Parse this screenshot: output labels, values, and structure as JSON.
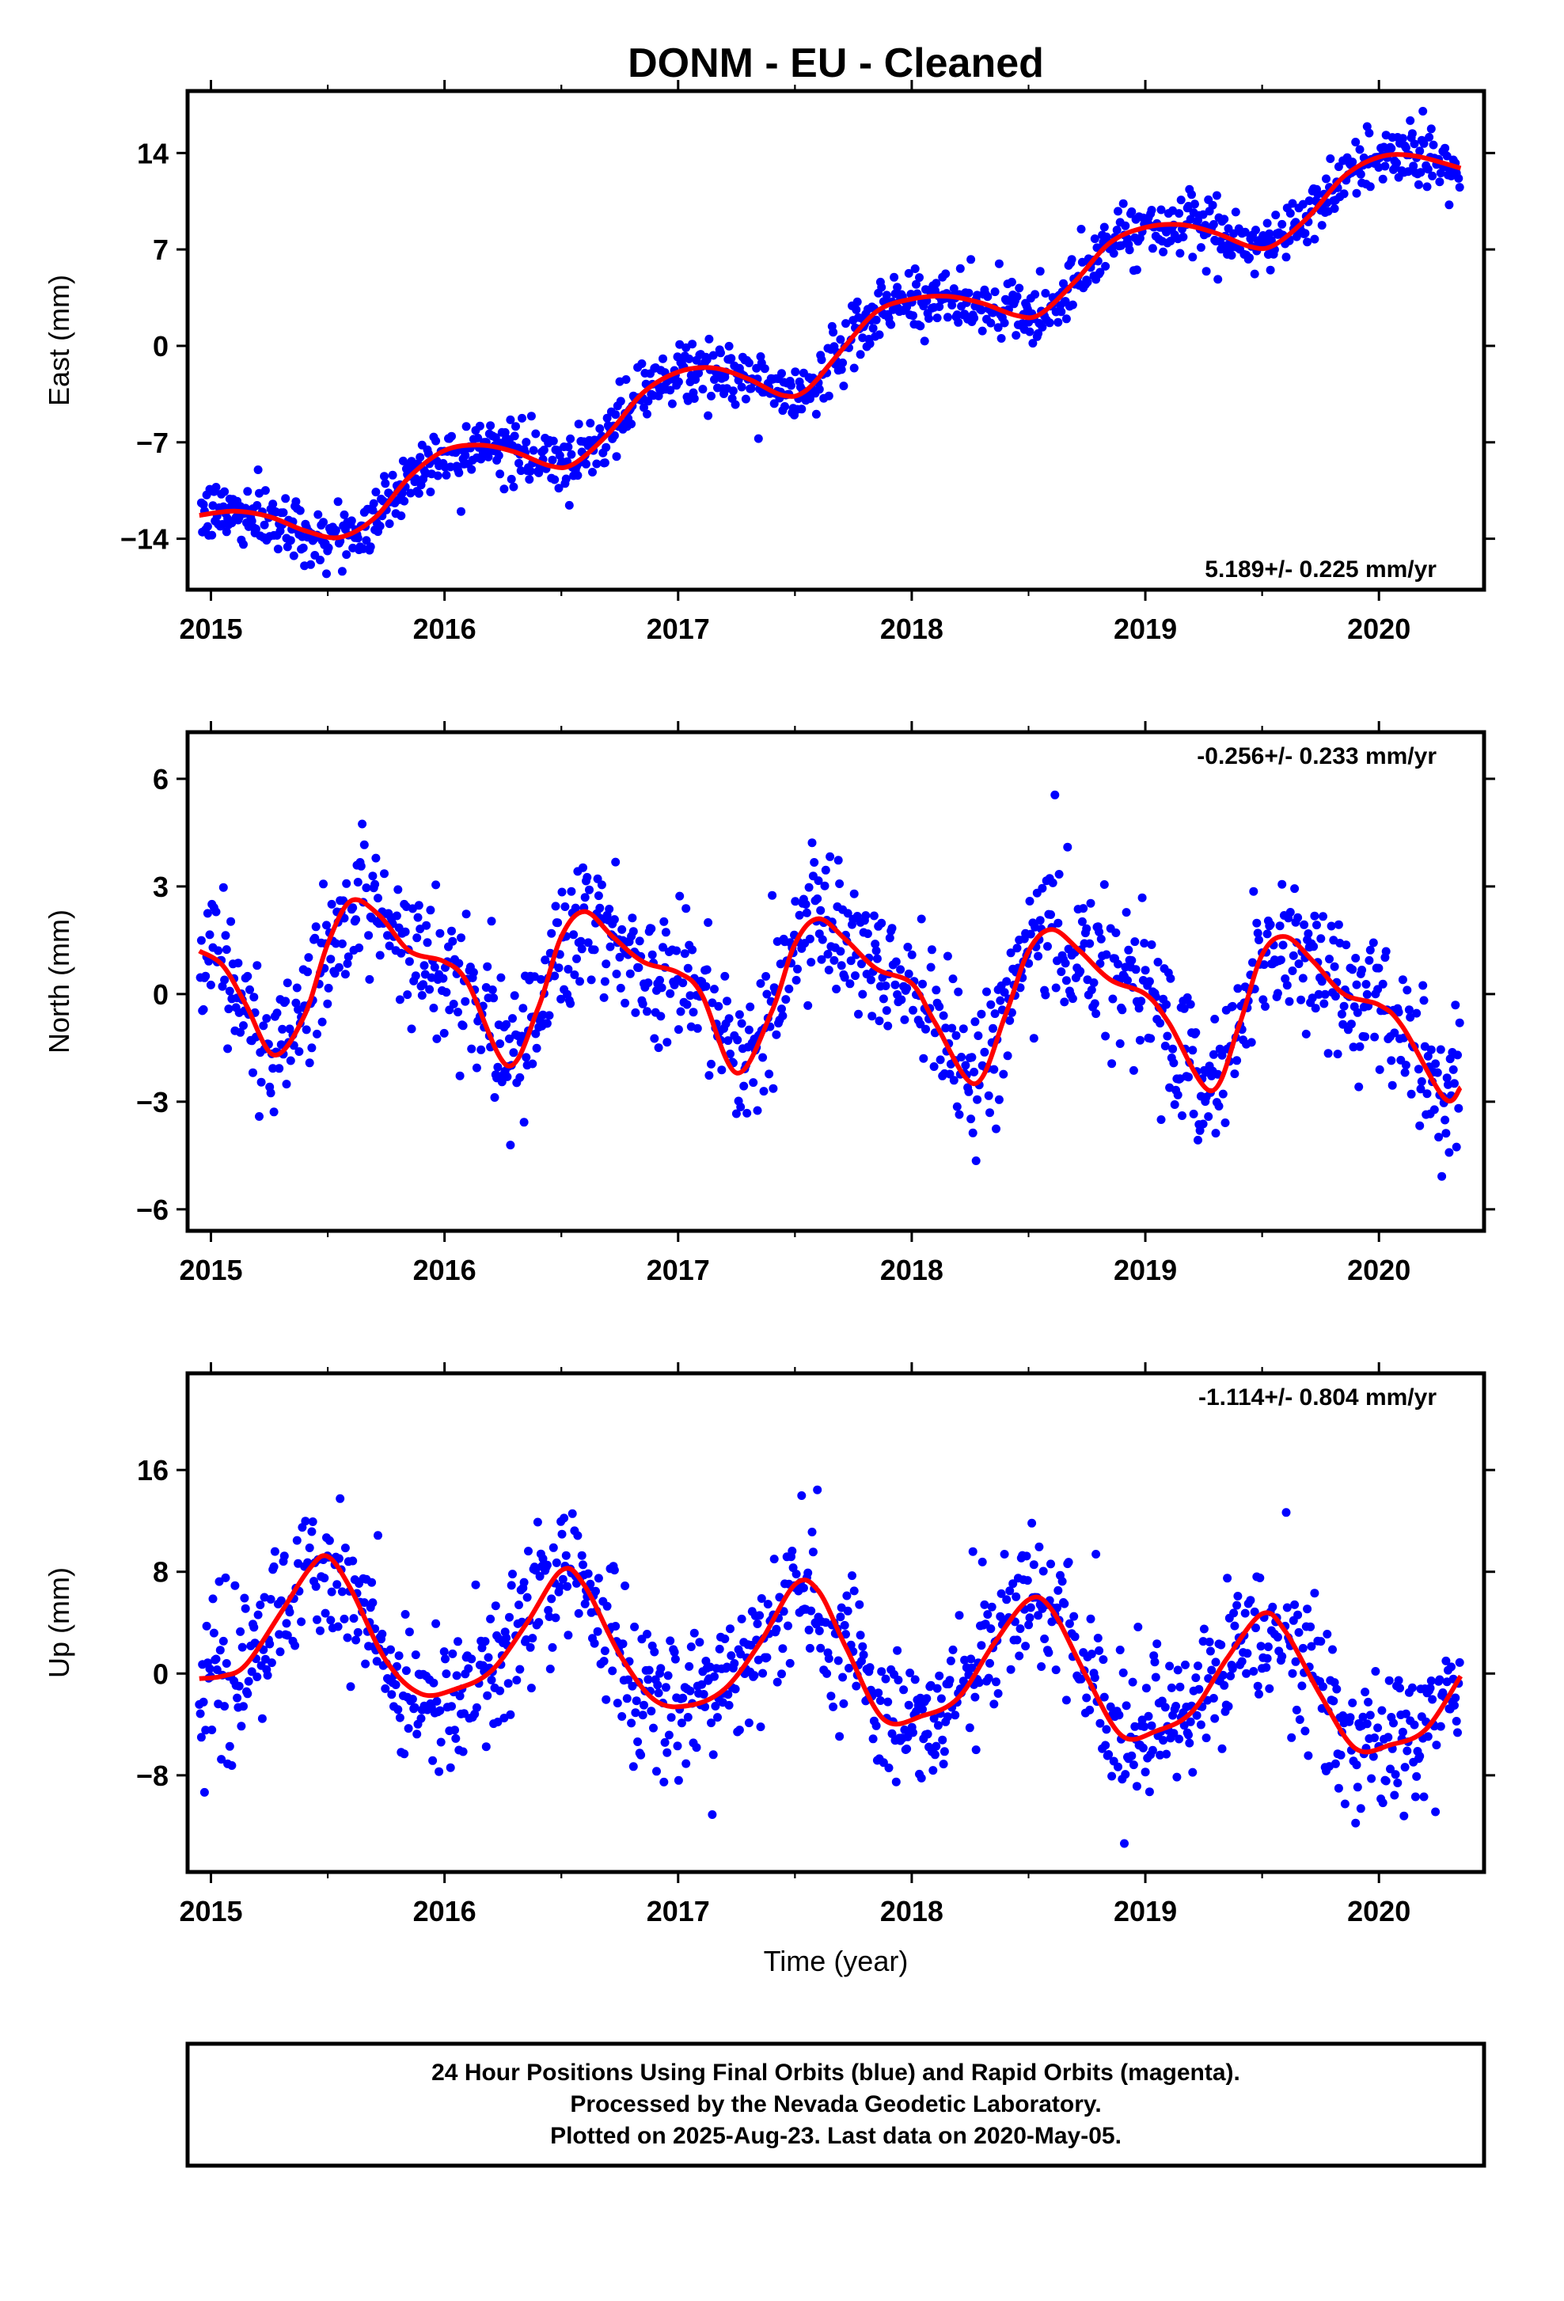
{
  "title": "DONM  - EU - Cleaned",
  "xlabel": "Time (year)",
  "footer": [
    "24 Hour Positions Using Final Orbits (blue) and Rapid Orbits (magenta).",
    "Processed by the Nevada Geodetic Laboratory.",
    "Plotted on 2025-Aug-23. Last data on 2020-May-05."
  ],
  "colors": {
    "points": "#0000ff",
    "model": "#ff0000",
    "frame": "#000000"
  },
  "chart_data": [
    {
      "type": "scatter",
      "ylabel": "East (mm)",
      "rate": "5.189+/- 0.225 mm/yr",
      "xlim": [
        2014.9,
        2020.45
      ],
      "ylim": [
        -17.7,
        18.5
      ],
      "x_ticks": [
        2015,
        2016,
        2017,
        2018,
        2019,
        2020
      ],
      "y_ticks": [
        -14,
        -7,
        0,
        7,
        14
      ],
      "y_tick_labels": [
        "−14",
        "−7",
        "0",
        "7",
        "14"
      ],
      "model": {
        "x": [
          2014.95,
          2015.1,
          2015.25,
          2015.4,
          2015.55,
          2015.7,
          2015.85,
          2016.0,
          2016.15,
          2016.3,
          2016.45,
          2016.55,
          2016.7,
          2016.85,
          2017.0,
          2017.15,
          2017.3,
          2017.45,
          2017.55,
          2017.7,
          2017.85,
          2018.0,
          2018.15,
          2018.3,
          2018.45,
          2018.55,
          2018.7,
          2018.85,
          2019.0,
          2019.15,
          2019.3,
          2019.45,
          2019.55,
          2019.7,
          2019.85,
          2020.0,
          2020.15,
          2020.35
        ],
        "y": [
          -12.3,
          -12.0,
          -12.4,
          -13.4,
          -13.9,
          -12.5,
          -9.5,
          -7.6,
          -7.2,
          -7.7,
          -8.7,
          -8.6,
          -6.4,
          -3.4,
          -1.9,
          -1.6,
          -2.4,
          -3.6,
          -3.2,
          -0.3,
          2.5,
          3.4,
          3.6,
          3.1,
          2.2,
          2.3,
          4.7,
          7.5,
          8.6,
          8.8,
          8.2,
          7.2,
          7.3,
          9.4,
          12.3,
          13.7,
          13.8,
          12.9
        ]
      }
    },
    {
      "type": "scatter",
      "ylabel": "North (mm)",
      "rate": "-0.256+/- 0.233 mm/yr",
      "xlim": [
        2014.9,
        2020.45
      ],
      "ylim": [
        -6.6,
        7.3
      ],
      "x_ticks": [
        2015,
        2016,
        2017,
        2018,
        2019,
        2020
      ],
      "y_ticks": [
        -6,
        -3,
        0,
        3,
        6
      ],
      "y_tick_labels": [
        "−6",
        "−3",
        "0",
        "3",
        "6"
      ],
      "model": {
        "x": [
          2014.95,
          2015.05,
          2015.15,
          2015.27,
          2015.4,
          2015.5,
          2015.6,
          2015.72,
          2015.85,
          2016.0,
          2016.1,
          2016.27,
          2016.4,
          2016.5,
          2016.6,
          2016.72,
          2016.85,
          2017.0,
          2017.1,
          2017.25,
          2017.4,
          2017.5,
          2017.6,
          2017.72,
          2017.85,
          2018.0,
          2018.1,
          2018.27,
          2018.4,
          2018.5,
          2018.6,
          2018.72,
          2018.85,
          2019.0,
          2019.1,
          2019.28,
          2019.4,
          2019.5,
          2019.6,
          2019.72,
          2019.85,
          2020.0,
          2020.1,
          2020.28,
          2020.35
        ],
        "y": [
          1.2,
          0.8,
          -0.3,
          -1.7,
          -0.6,
          1.4,
          2.6,
          2.2,
          1.2,
          0.9,
          0.3,
          -2.0,
          -0.4,
          1.6,
          2.3,
          1.6,
          0.9,
          0.6,
          0.0,
          -2.2,
          -0.5,
          1.4,
          2.1,
          1.5,
          0.7,
          0.3,
          -0.8,
          -2.5,
          -0.6,
          1.2,
          1.8,
          1.2,
          0.4,
          0.0,
          -0.8,
          -2.7,
          -0.9,
          1.1,
          1.6,
          0.9,
          0.0,
          -0.3,
          -0.9,
          -2.9,
          -2.6
        ]
      }
    },
    {
      "type": "scatter",
      "ylabel": "Up (mm)",
      "rate": "-1.114+/- 0.804 mm/yr",
      "xlim": [
        2014.9,
        2020.45
      ],
      "ylim": [
        -15.6,
        23.6
      ],
      "x_ticks": [
        2015,
        2016,
        2017,
        2018,
        2019,
        2020
      ],
      "y_ticks": [
        -8,
        0,
        8,
        16
      ],
      "y_tick_labels": [
        "−8",
        "0",
        "8",
        "16"
      ],
      "model": {
        "x": [
          2014.95,
          2015.05,
          2015.15,
          2015.3,
          2015.42,
          2015.5,
          2015.6,
          2015.75,
          2015.9,
          2016.05,
          2016.2,
          2016.35,
          2016.5,
          2016.6,
          2016.75,
          2016.9,
          2017.05,
          2017.2,
          2017.35,
          2017.5,
          2017.6,
          2017.72,
          2017.88,
          2018.05,
          2018.2,
          2018.35,
          2018.5,
          2018.6,
          2018.75,
          2018.9,
          2019.05,
          2019.2,
          2019.35,
          2019.5,
          2019.6,
          2019.75,
          2019.9,
          2020.05,
          2020.2,
          2020.35
        ],
        "y": [
          -0.4,
          -0.2,
          0.7,
          4.8,
          8.2,
          9.2,
          6.6,
          1.0,
          -1.6,
          -1.2,
          0.2,
          3.9,
          8.1,
          6.9,
          1.5,
          -2.1,
          -2.5,
          -1.2,
          2.4,
          7.0,
          6.5,
          2.0,
          -3.6,
          -3.3,
          -1.9,
          2.3,
          5.8,
          5.0,
          -0.3,
          -4.9,
          -4.5,
          -3.0,
          1.2,
          4.7,
          3.3,
          -1.7,
          -5.9,
          -5.6,
          -4.4,
          -0.2
        ]
      }
    }
  ]
}
